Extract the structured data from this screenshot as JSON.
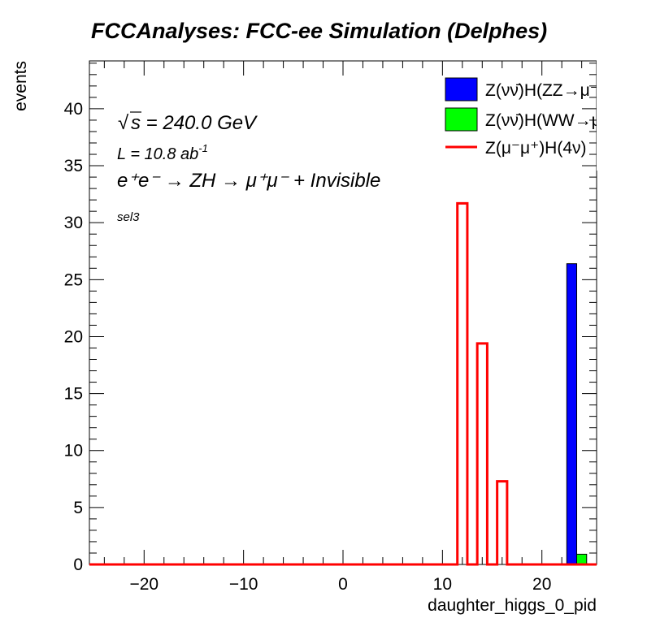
{
  "chart_data": {
    "type": "bar",
    "title": "FCCAnalyses: FCC-ee Simulation (Delphes)",
    "xlabel": "daughter_higgs_0_pid",
    "ylabel": "events",
    "xlim": [
      -25.5,
      25.5
    ],
    "ylim": [
      0,
      44.2
    ],
    "xticks": [
      -20,
      -10,
      0,
      10,
      20
    ],
    "yticks": [
      0,
      5,
      10,
      15,
      20,
      25,
      30,
      35,
      40
    ],
    "bin_width": 1,
    "legend_position": "top-right",
    "grid": false,
    "series": [
      {
        "name": "Z(νν̄)H(ZZ→μ⁻μ⁺ν",
        "style": "filled",
        "color": "#0000ff",
        "x": [
          23
        ],
        "values": [
          26.4
        ]
      },
      {
        "name": "Z(νν̄)H(WW→μ⁻ν̄μ",
        "style": "filled",
        "color": "#00ff00",
        "x": [
          24
        ],
        "values": [
          0.9
        ]
      },
      {
        "name": "Z(μ⁻μ⁺)H(4ν)",
        "style": "step",
        "color": "#ff0000",
        "x": [
          12,
          14,
          16
        ],
        "values": [
          31.7,
          19.4,
          7.3
        ]
      }
    ]
  },
  "annotations": {
    "sqrt_symbol": "√",
    "sqrt_s": "s = 240.0 GeV",
    "lumi": "L = 10.8 ab",
    "lumi_exp": "-1",
    "process": "e⁺e⁻ → ZH → μ⁺μ⁻ + Invisible",
    "selection": "sel3"
  }
}
